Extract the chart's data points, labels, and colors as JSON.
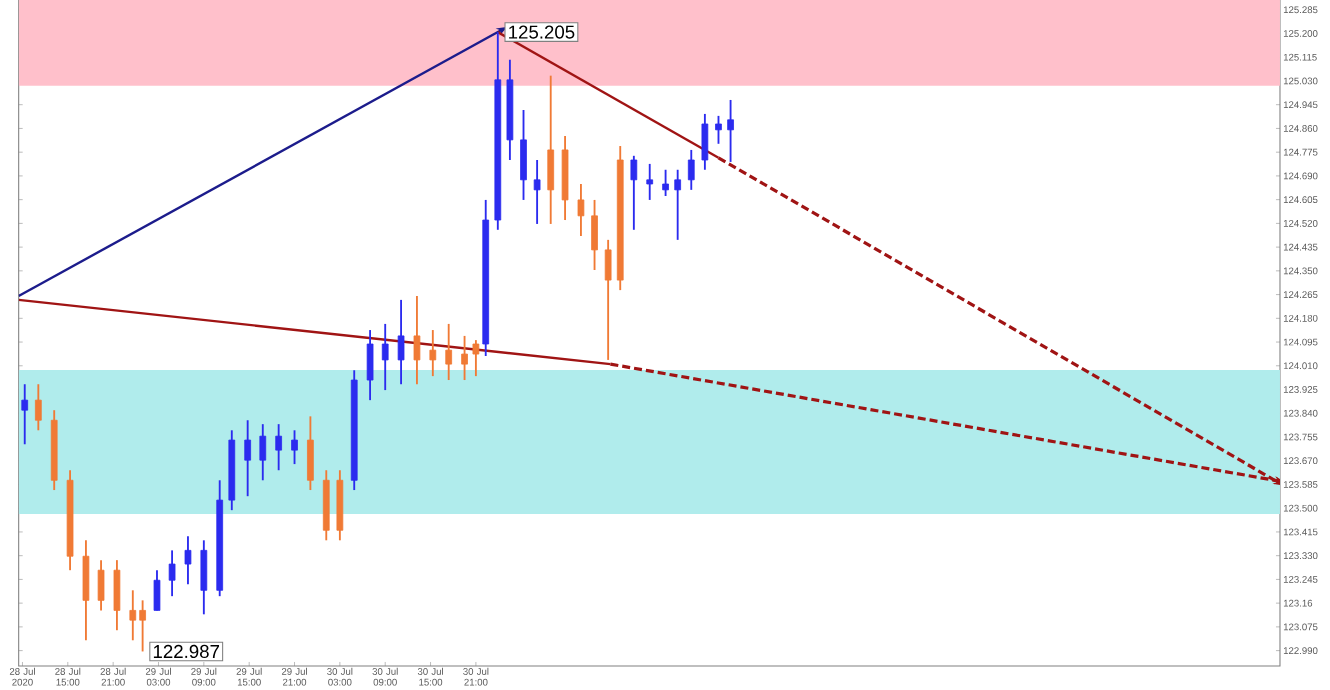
{
  "chart_data": {
    "type": "candlestick",
    "xlim": [
      "2020-07-28T08:30",
      "2020-08-04T07:24"
    ],
    "xticks": [
      {
        "value": "2020-07-28T09:00",
        "label": "28 Jul 2020"
      },
      {
        "value": "2020-07-28T15:00",
        "label": "28 Jul 15:00"
      },
      {
        "value": "2020-07-28T21:00",
        "label": "28 Jul 21:00"
      },
      {
        "value": "2020-07-29T03:00",
        "label": "29 Jul 03:00"
      },
      {
        "value": "2020-07-29T09:00",
        "label": "29 Jul 09:00"
      },
      {
        "value": "2020-07-29T15:00",
        "label": "29 Jul 15:00"
      },
      {
        "value": "2020-07-29T21:00",
        "label": "29 Jul 21:00"
      },
      {
        "value": "2020-07-30T03:00",
        "label": "30 Jul 03:00"
      },
      {
        "value": "2020-07-30T09:00",
        "label": "30 Jul 09:00"
      },
      {
        "value": "2020-07-30T15:00",
        "label": "30 Jul 15:00"
      },
      {
        "value": "2020-07-30T21:00",
        "label": "30 Jul 21:00"
      }
    ],
    "ylim": [
      122.935,
      125.32
    ],
    "yticks": [
      {
        "value": 122.99,
        "label": "122.990"
      },
      123.075,
      123.16,
      123.245,
      {
        "value": 123.33,
        "label": "123.330"
      },
      123.415,
      {
        "value": 123.5,
        "label": "123.500"
      },
      123.585,
      {
        "value": 123.67,
        "label": "123.670"
      },
      123.755,
      {
        "value": 123.84,
        "label": "123.840"
      },
      123.925,
      {
        "value": 124.01,
        "label": "124.010"
      },
      124.095,
      {
        "value": 124.18,
        "label": "124.180"
      },
      124.265,
      {
        "value": 124.35,
        "label": "124.350"
      },
      124.435,
      {
        "value": 124.52,
        "label": "124.520"
      },
      124.605,
      {
        "value": 124.69,
        "label": "124.690"
      },
      124.775,
      {
        "value": 124.86,
        "label": "124.860"
      },
      124.945,
      {
        "value": 125.03,
        "label": "125.030"
      },
      125.115,
      {
        "value": 125.2,
        "label": "125.200"
      },
      125.285
    ],
    "bands": [
      {
        "axis": "y",
        "from": 125.013,
        "to": 125.32,
        "color": "#ffc0cb"
      },
      {
        "axis": "y",
        "from": 123.479,
        "to": 123.995,
        "color": "#b0ecec"
      }
    ],
    "series": [
      {
        "color": "#2b2bef",
        "x": [
          "2020-07-28T09:18"
        ],
        "ohlc": [
          [
            123.851,
            123.944,
            123.729,
            123.887
          ]
        ]
      },
      {
        "color": "#f07a35",
        "x": [
          "2020-07-28T11:06",
          "2020-07-28T13:12",
          "2020-07-28T15:18",
          "2020-07-28T17:24",
          "2020-07-28T19:24",
          "2020-07-28T21:30",
          "2020-07-28T23:36",
          "2020-07-29T00:54"
        ],
        "ohlc": [
          [
            123.887,
            123.944,
            123.779,
            123.815
          ],
          [
            123.815,
            123.851,
            123.565,
            123.6
          ],
          [
            123.6,
            123.636,
            123.278,
            123.328
          ],
          [
            123.328,
            123.385,
            123.027,
            123.17
          ],
          [
            123.278,
            123.314,
            123.134,
            123.17
          ],
          [
            123.278,
            123.314,
            123.063,
            123.134
          ],
          [
            123.134,
            123.206,
            123.027,
            123.099
          ],
          [
            123.134,
            123.17,
            122.987,
            123.099
          ]
        ]
      },
      {
        "color": "#2b2bef",
        "x": [
          "2020-07-29T02:48",
          "2020-07-29T04:48",
          "2020-07-29T06:54",
          "2020-07-29T09:00",
          "2020-07-29T11:06",
          "2020-07-29T12:42",
          "2020-07-29T14:48",
          "2020-07-29T16:48",
          "2020-07-29T18:54",
          "2020-07-29T21:00"
        ],
        "ohlc": [
          [
            123.134,
            123.278,
            123.134,
            123.242
          ],
          [
            123.242,
            123.349,
            123.185,
            123.3
          ],
          [
            123.3,
            123.4,
            123.228,
            123.349
          ],
          [
            123.206,
            123.385,
            123.12,
            123.349
          ],
          [
            123.206,
            123.6,
            123.185,
            123.529
          ],
          [
            123.529,
            123.779,
            123.493,
            123.744
          ],
          [
            123.672,
            123.815,
            123.543,
            123.744
          ],
          [
            123.672,
            123.801,
            123.6,
            123.758
          ],
          [
            123.708,
            123.801,
            123.636,
            123.758
          ],
          [
            123.708,
            123.779,
            123.658,
            123.744
          ]
        ]
      },
      {
        "color": "#f07a35",
        "x": [
          "2020-07-29T23:06",
          "2020-07-30T01:12",
          "2020-07-30T03:00"
        ],
        "ohlc": [
          [
            123.744,
            123.829,
            123.565,
            123.6
          ],
          [
            123.6,
            123.636,
            123.385,
            123.421
          ],
          [
            123.6,
            123.636,
            123.385,
            123.421
          ]
        ]
      },
      {
        "color": "#2b2bef",
        "x": [
          "2020-07-30T04:54",
          "2020-07-30T07:00",
          "2020-07-30T09:00",
          "2020-07-30T11:06"
        ],
        "ohlc": [
          [
            123.6,
            123.994,
            123.565,
            123.959
          ],
          [
            123.959,
            124.138,
            123.887,
            124.088
          ],
          [
            124.031,
            124.16,
            123.923,
            124.088
          ],
          [
            124.031,
            124.246,
            123.944,
            124.117
          ]
        ]
      },
      {
        "color": "#f07a35",
        "x": [
          "2020-07-30T13:12",
          "2020-07-30T15:18",
          "2020-07-30T17:24",
          "2020-07-30T19:30",
          "2020-07-30T21:00"
        ],
        "ohlc": [
          [
            124.117,
            124.26,
            123.944,
            124.031
          ],
          [
            124.066,
            124.138,
            123.973,
            124.031
          ],
          [
            124.066,
            124.16,
            123.959,
            124.016
          ],
          [
            124.052,
            124.117,
            123.959,
            124.016
          ],
          [
            124.088,
            124.102,
            123.973,
            124.052
          ]
        ]
      },
      {
        "color": "#2b2bef",
        "x": [
          "2020-07-30T22:18",
          "2020-07-30T23:54",
          "2020-07-31T01:30",
          "2020-07-31T03:18",
          "2020-07-31T05:06"
        ],
        "ohlc": [
          [
            124.088,
            124.604,
            124.045,
            124.532
          ],
          [
            124.532,
            125.205,
            124.497,
            125.034
          ],
          [
            124.819,
            125.106,
            124.747,
            125.034
          ],
          [
            124.676,
            124.926,
            124.604,
            124.819
          ],
          [
            124.64,
            124.747,
            124.518,
            124.676
          ]
        ]
      },
      {
        "color": "#f07a35",
        "x": [
          "2020-07-31T06:54",
          "2020-07-31T08:48",
          "2020-07-31T10:54",
          "2020-07-31T12:42",
          "2020-07-31T14:30",
          "2020-07-31T16:06"
        ],
        "ohlc": [
          [
            124.783,
            125.049,
            124.518,
            124.64
          ],
          [
            124.783,
            124.833,
            124.532,
            124.604
          ],
          [
            124.604,
            124.661,
            124.475,
            124.547
          ],
          [
            124.547,
            124.604,
            124.353,
            124.425
          ],
          [
            124.425,
            124.461,
            124.031,
            124.317
          ],
          [
            124.747,
            124.797,
            124.281,
            124.317
          ]
        ]
      },
      {
        "color": "#2b2bef",
        "x": [
          "2020-07-31T17:54",
          "2020-07-31T20:00",
          "2020-07-31T22:06",
          "2020-07-31T23:42",
          "2020-08-01T01:30",
          "2020-08-01T03:18",
          "2020-08-01T05:06",
          "2020-08-01T06:42"
        ],
        "ohlc": [
          [
            124.676,
            124.762,
            124.497,
            124.747
          ],
          [
            124.661,
            124.733,
            124.604,
            124.676
          ],
          [
            124.64,
            124.712,
            124.618,
            124.661
          ],
          [
            124.64,
            124.712,
            124.461,
            124.676
          ],
          [
            124.676,
            124.783,
            124.64,
            124.747
          ],
          [
            124.747,
            124.912,
            124.712,
            124.876
          ],
          [
            124.855,
            124.905,
            124.805,
            124.876
          ],
          [
            124.855,
            124.962,
            124.74,
            124.891
          ]
        ]
      },
      {
        "type": "line",
        "color": "#1c1c8c",
        "x": [
          "2020-07-28T08:30",
          "2020-07-30T23:54"
        ],
        "values": [
          124.26,
          125.205
        ]
      },
      {
        "type": "line",
        "color": "#a01414",
        "x": [
          "2020-07-28T08:30",
          "2020-07-31T14:48"
        ],
        "values": [
          124.246,
          124.016
        ]
      },
      {
        "type": "line",
        "color": "#a01414",
        "line_style": "dashed",
        "x": [
          "2020-07-31T14:48",
          "2020-08-04T06:42"
        ],
        "values": [
          124.016,
          123.6
        ]
      },
      {
        "type": "line",
        "color": "#a01414",
        "x": [
          "2020-07-30T23:54",
          "2020-08-01T05:06"
        ],
        "values": [
          125.205,
          124.755
        ]
      },
      {
        "type": "line",
        "color": "#a01414",
        "line_style": "dashed",
        "x": [
          "2020-08-01T05:06",
          "2020-08-04T06:42"
        ],
        "values": [
          124.755,
          123.6
        ]
      }
    ],
    "annotations": [
      {
        "text": "125.205",
        "x": "2020-07-30T23:54",
        "y": 125.205
      },
      {
        "text": "122.987",
        "x": "2020-07-29T00:54",
        "y": 122.987
      }
    ]
  }
}
